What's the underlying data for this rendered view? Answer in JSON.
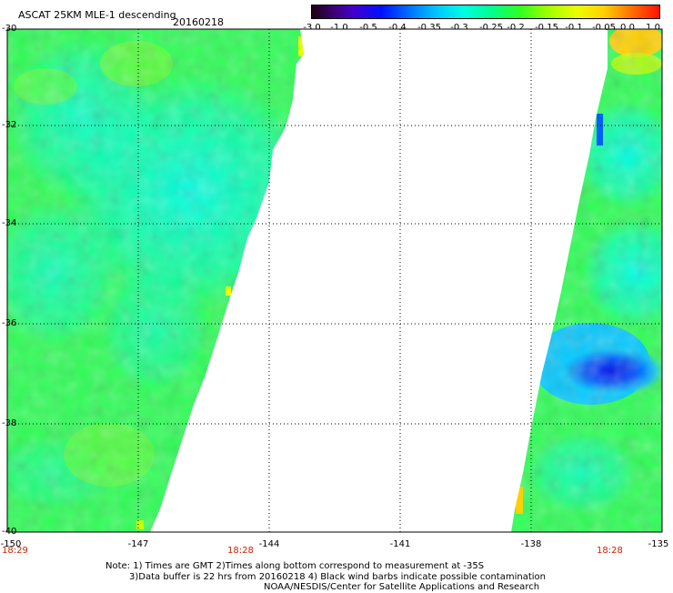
{
  "title": "ASCAT 25KM MLE-1 descending",
  "date": "20160218",
  "colorbar": {
    "labels": [
      "-3.0",
      "-1.0",
      "-0.5",
      "-0.4",
      "-0.35",
      "-0.3",
      "-0.25",
      "-0.2",
      "-0.15",
      "-0.1",
      "-0.05",
      "0.0",
      "1.0"
    ]
  },
  "y_axis": {
    "labels": [
      "-30",
      "-32",
      "-34",
      "-36",
      "-38",
      "-40"
    ]
  },
  "x_axis": {
    "labels": [
      "-150",
      "-147",
      "-144",
      "-141",
      "-138",
      "-135"
    ]
  },
  "time_labels": [
    "18:29",
    "18:28",
    "18:28"
  ],
  "note": {
    "line1": "Note: 1) Times are GMT 2)Times along bottom correspond to measurement at -35S",
    "line2": "3)Data buffer is 22 hrs from 20160218 4) Black wind barbs indicate possible contamination",
    "line3": "NOAA/NESDIS/Center for Satellite Applications and Research"
  },
  "colors": {
    "green": "#22ff44",
    "cyan": "#00ffdd",
    "blue": "#0044ff",
    "time": "#cc2200"
  }
}
